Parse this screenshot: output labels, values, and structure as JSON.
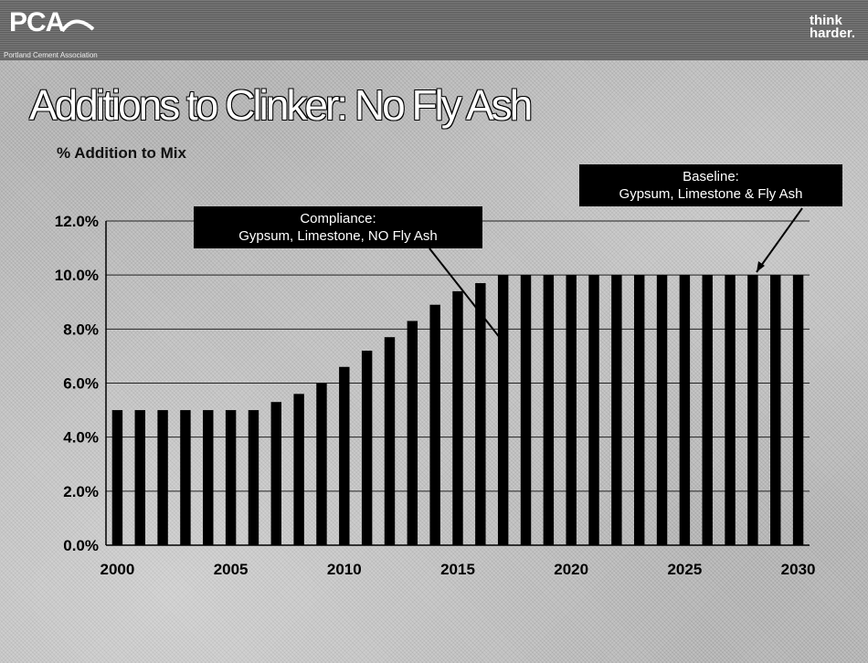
{
  "header": {
    "logo_text": "PCA",
    "logo_subtext": "Portland Cement Association",
    "tagline_line1": "think",
    "tagline_line2": "harder."
  },
  "title": "Additions to Clinker: No Fly Ash",
  "subtitle": "% Addition to Mix",
  "annotations": {
    "compliance_line1": "Compliance:",
    "compliance_line2": "Gypsum, Limestone, NO Fly Ash",
    "baseline_line1": "Baseline:",
    "baseline_line2": "Gypsum, Limestone & Fly Ash"
  },
  "colors": {
    "bar": "#000000",
    "gridline": "#222222"
  },
  "chart_data": {
    "type": "bar",
    "title": "Additions to Clinker: No Fly Ash",
    "ylabel": "% Addition to Mix",
    "xlabel": "",
    "ylim": [
      0,
      12
    ],
    "grid": true,
    "x_tick_labels": [
      "2000",
      "2005",
      "2010",
      "2015",
      "2020",
      "2025",
      "2030"
    ],
    "y_tick_labels": [
      "0.0%",
      "2.0%",
      "4.0%",
      "6.0%",
      "8.0%",
      "10.0%",
      "12.0%"
    ],
    "categories": [
      2000,
      2001,
      2002,
      2003,
      2004,
      2005,
      2006,
      2007,
      2008,
      2009,
      2010,
      2011,
      2012,
      2013,
      2014,
      2015,
      2016,
      2017,
      2018,
      2019,
      2020,
      2021,
      2022,
      2023,
      2024,
      2025,
      2026,
      2027,
      2028,
      2029,
      2030
    ],
    "values": [
      5.0,
      5.0,
      5.0,
      5.0,
      5.0,
      5.0,
      5.0,
      5.3,
      5.6,
      6.0,
      6.6,
      7.2,
      7.7,
      8.3,
      8.9,
      9.4,
      9.7,
      10.0,
      10.0,
      10.0,
      10.0,
      10.0,
      10.0,
      10.0,
      10.0,
      10.0,
      10.0,
      10.0,
      10.0,
      10.0,
      10.0
    ]
  }
}
